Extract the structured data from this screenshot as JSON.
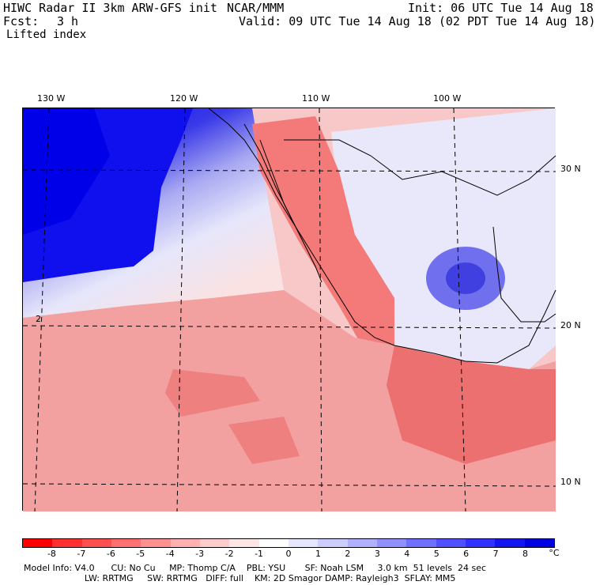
{
  "header": {
    "title_left": "HIWC Radar II 3km ARW-GFS init",
    "org": "NCAR/MMM",
    "init": "Init: 06 UTC Tue 14 Aug 18",
    "fcst_label": "Fcst:",
    "fcst_value": "3 h",
    "valid": "Valid: 09 UTC Tue 14 Aug 18 (02 PDT Tue 14 Aug 18)",
    "field": "Lifted index"
  },
  "map": {
    "lon_labels": [
      "130 W",
      "120 W",
      "110 W",
      "100 W"
    ],
    "lat_labels": [
      "30 N",
      "20 N",
      "10 N"
    ],
    "contour_label": "2",
    "colors": {
      "neg_strong": "#ff1a1a",
      "neg_mid": "#f47a7a",
      "neg_light": "#fbc8c8",
      "pos_light": "#dcdcf8",
      "pos_mid": "#8c8cf0",
      "pos_strong": "#0000ee",
      "coast": "#000000",
      "contour": "#8b0000"
    }
  },
  "colorbar": {
    "colors": [
      "#ff0000",
      "#ff3030",
      "#ff5050",
      "#ff7070",
      "#ff9090",
      "#ffb0b0",
      "#ffcccc",
      "#ffe6e6",
      "#ffffff",
      "#e6e6ff",
      "#ccccff",
      "#b0b0ff",
      "#9090ff",
      "#7070ff",
      "#5050ff",
      "#3030ff",
      "#1515f0",
      "#0000e0"
    ],
    "labels": [
      "-8",
      "-7",
      "-6",
      "-5",
      "-4",
      "-3",
      "-2",
      "-1",
      "0",
      "1",
      "2",
      "3",
      "4",
      "5",
      "6",
      "7",
      "8"
    ],
    "unit": "°C"
  },
  "footer": {
    "line1": "Model Info: V4.0      CU: No Cu     MP: Thomp C/A    PBL: YSU       SF: Noah LSM     3.0 km  51 levels  24 sec",
    "line2": "                      LW: RRTMG     SW: RRTMG   DIFF: full    KM: 2D Smagor DAMP: Rayleigh3  SFLAY: MM5"
  }
}
